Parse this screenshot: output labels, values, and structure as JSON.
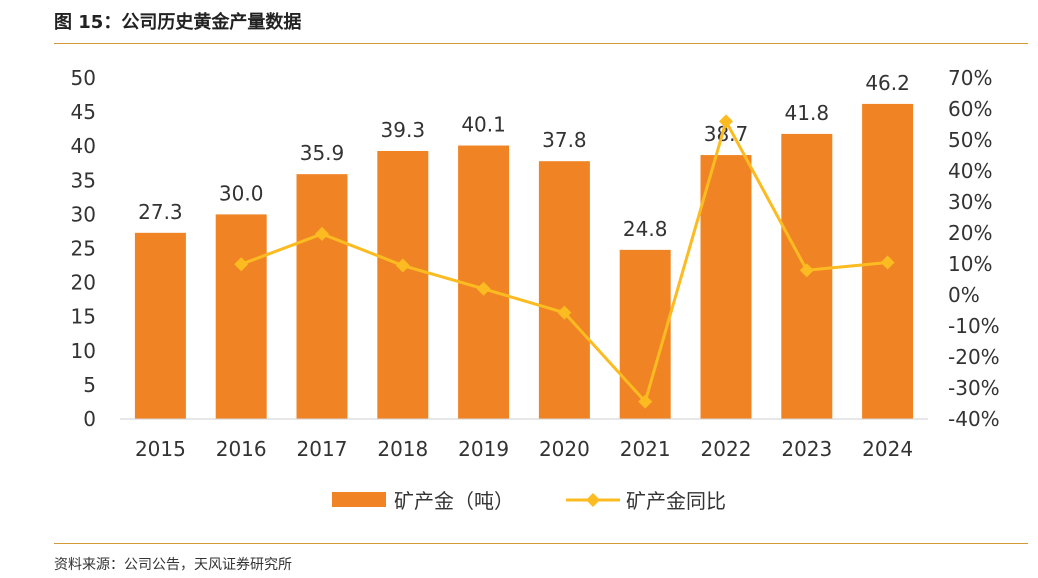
{
  "header": {
    "title": "图 15：公司历史黄金产量数据"
  },
  "footer": {
    "source": "资料来源：公司公告，天风证券研究所"
  },
  "chart_data": {
    "type": "bar",
    "categories": [
      "2015",
      "2016",
      "2017",
      "2018",
      "2019",
      "2020",
      "2021",
      "2022",
      "2023",
      "2024"
    ],
    "series": [
      {
        "name": "矿产金（吨）",
        "type": "bar",
        "axis": "left",
        "color": "#f08424",
        "values": [
          27.3,
          30.0,
          35.9,
          39.3,
          40.1,
          37.8,
          24.8,
          38.7,
          41.8,
          46.2
        ],
        "labels": [
          "27.3",
          "30.0",
          "35.9",
          "39.3",
          "40.1",
          "37.8",
          "24.8",
          "38.7",
          "41.8",
          "46.2"
        ]
      },
      {
        "name": "矿产金同比",
        "type": "line",
        "axis": "right",
        "color": "#fbbb21",
        "values": [
          null,
          9.9,
          19.7,
          9.5,
          2.0,
          -5.7,
          -34.4,
          56.0,
          8.0,
          10.5
        ]
      }
    ],
    "y_left": {
      "min": 0,
      "max": 50,
      "ticks": [
        "0",
        "5",
        "10",
        "15",
        "20",
        "25",
        "30",
        "35",
        "40",
        "45",
        "50"
      ]
    },
    "y_right": {
      "min": -40,
      "max": 70,
      "ticks": [
        "-40%",
        "-30%",
        "-20%",
        "-10%",
        "0%",
        "10%",
        "20%",
        "30%",
        "40%",
        "50%",
        "60%",
        "70%"
      ]
    },
    "legend": {
      "position": "bottom"
    }
  }
}
